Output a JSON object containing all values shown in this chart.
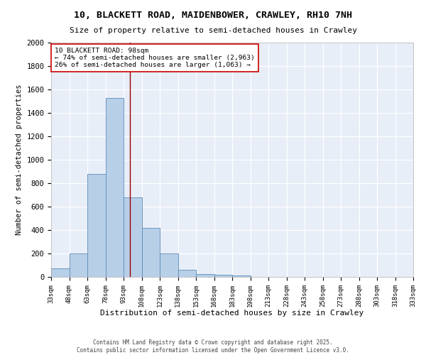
{
  "title": "10, BLACKETT ROAD, MAIDENBOWER, CRAWLEY, RH10 7NH",
  "subtitle": "Size of property relative to semi-detached houses in Crawley",
  "xlabel": "Distribution of semi-detached houses by size in Crawley",
  "ylabel": "Number of semi-detached properties",
  "bar_color": "#b8cfe8",
  "bar_edge_color": "#5b8db8",
  "background_color": "#e8eef8",
  "grid_color": "#ffffff",
  "bins": [
    33,
    48,
    63,
    78,
    93,
    108,
    123,
    138,
    153,
    168,
    183,
    198,
    213,
    228,
    243,
    258,
    273,
    288,
    303,
    318,
    333
  ],
  "counts": [
    70,
    200,
    880,
    1530,
    680,
    420,
    200,
    60,
    25,
    20,
    10,
    0,
    0,
    0,
    0,
    0,
    0,
    0,
    0,
    0
  ],
  "property_size": 98,
  "property_label": "10 BLACKETT ROAD: 98sqm",
  "pct_smaller": 74,
  "n_smaller": 2963,
  "pct_larger": 26,
  "n_larger": 1063,
  "vline_color": "#990000",
  "annotation_box_color": "#cc0000",
  "ylim": [
    0,
    2000
  ],
  "yticks": [
    0,
    200,
    400,
    600,
    800,
    1000,
    1200,
    1400,
    1600,
    1800,
    2000
  ],
  "footer": "Contains HM Land Registry data © Crown copyright and database right 2025.\nContains public sector information licensed under the Open Government Licence v3.0.",
  "title_fontsize": 9.5,
  "subtitle_fontsize": 8,
  "tick_fontsize": 6.5,
  "ylabel_fontsize": 7.5,
  "xlabel_fontsize": 8,
  "annotation_fontsize": 6.8,
  "footer_fontsize": 5.5
}
